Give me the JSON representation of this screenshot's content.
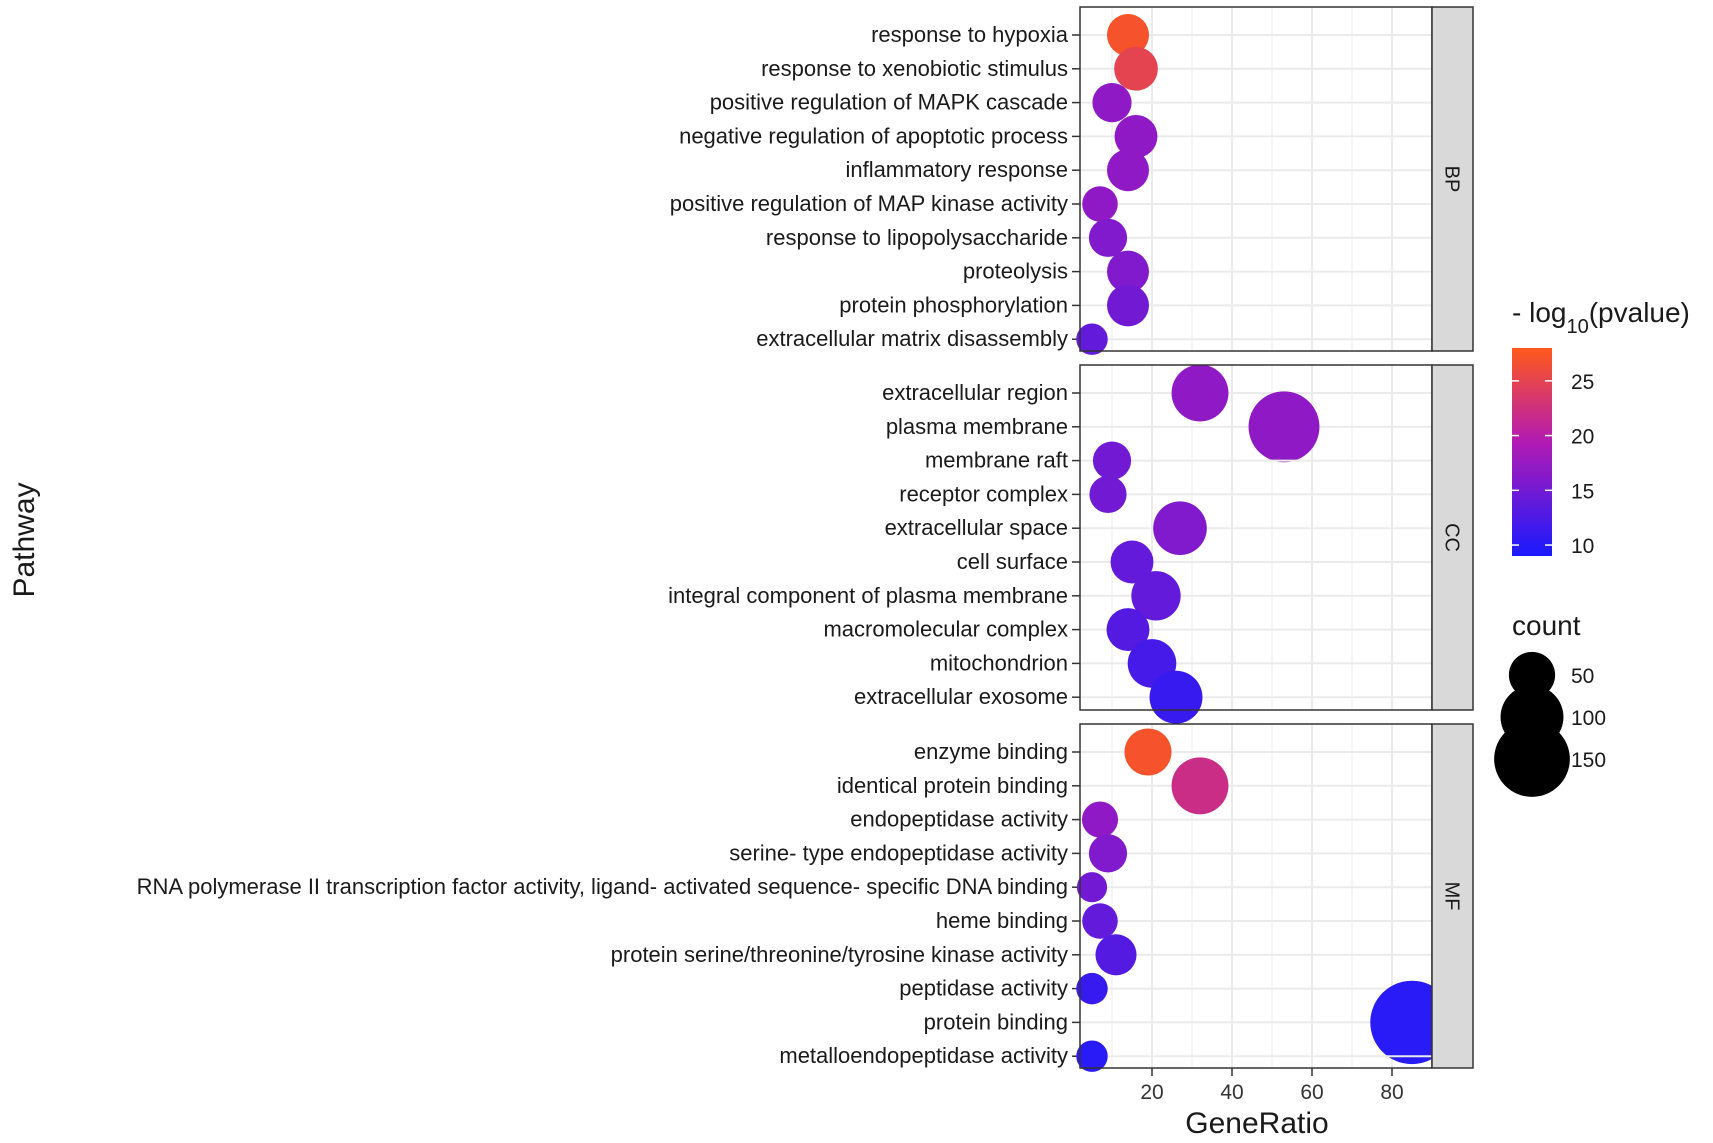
{
  "chart_data": {
    "type": "scatter",
    "xlabel": "GeneRatio",
    "ylabel": "Pathway",
    "xlim": [
      2,
      90
    ],
    "xticks": [
      20,
      40,
      60,
      80
    ],
    "panels": [
      {
        "name": "BP",
        "points": [
          {
            "label": "response to hypoxia",
            "x": 14,
            "count": 40,
            "log10p": 27
          },
          {
            "label": "response to xenobiotic stimulus",
            "x": 16,
            "count": 44,
            "log10p": 25
          },
          {
            "label": "positive regulation of MAPK cascade",
            "x": 10,
            "count": 34,
            "log10p": 17
          },
          {
            "label": "negative regulation of apoptotic process",
            "x": 16,
            "count": 42,
            "log10p": 17
          },
          {
            "label": "inflammatory response",
            "x": 14,
            "count": 40,
            "log10p": 17
          },
          {
            "label": "positive regulation of MAP kinase activity",
            "x": 7,
            "count": 27,
            "log10p": 17
          },
          {
            "label": "response to lipopolysaccharide",
            "x": 9,
            "count": 32,
            "log10p": 16
          },
          {
            "label": "proteolysis",
            "x": 14,
            "count": 40,
            "log10p": 16
          },
          {
            "label": "protein phosphorylation",
            "x": 14,
            "count": 40,
            "log10p": 15
          },
          {
            "label": "extracellular matrix disassembly",
            "x": 5,
            "count": 20,
            "log10p": 14
          }
        ]
      },
      {
        "name": "CC",
        "points": [
          {
            "label": "extracellular region",
            "x": 32,
            "count": 80,
            "log10p": 17
          },
          {
            "label": "plasma membrane",
            "x": 53,
            "count": 130,
            "log10p": 17
          },
          {
            "label": "membrane raft",
            "x": 10,
            "count": 32,
            "log10p": 15
          },
          {
            "label": "receptor complex",
            "x": 9,
            "count": 30,
            "log10p": 15
          },
          {
            "label": "extracellular space",
            "x": 27,
            "count": 70,
            "log10p": 16
          },
          {
            "label": "cell surface",
            "x": 15,
            "count": 42,
            "log10p": 14
          },
          {
            "label": "integral component of plasma membrane",
            "x": 21,
            "count": 58,
            "log10p": 14
          },
          {
            "label": "macromolecular complex",
            "x": 14,
            "count": 42,
            "log10p": 13
          },
          {
            "label": "mitochondrion",
            "x": 20,
            "count": 56,
            "log10p": 12
          },
          {
            "label": "extracellular exosome",
            "x": 26,
            "count": 68,
            "log10p": 11
          }
        ]
      },
      {
        "name": "MF",
        "points": [
          {
            "label": "enzyme binding",
            "x": 19,
            "count": 52,
            "log10p": 27
          },
          {
            "label": "identical protein binding",
            "x": 32,
            "count": 80,
            "log10p": 22
          },
          {
            "label": "endopeptidase activity",
            "x": 7,
            "count": 28,
            "log10p": 17
          },
          {
            "label": "serine- type endopeptidase activity",
            "x": 9,
            "count": 32,
            "log10p": 16
          },
          {
            "label": "RNA polymerase II transcription factor activity, ligand- activated sequence- specific DNA binding",
            "x": 5,
            "count": 18,
            "log10p": 15
          },
          {
            "label": "heme binding",
            "x": 7,
            "count": 27,
            "log10p": 14
          },
          {
            "label": "protein serine/threonine/tyrosine kinase activity",
            "x": 11,
            "count": 38,
            "log10p": 13
          },
          {
            "label": "peptidase activity",
            "x": 5,
            "count": 20,
            "log10p": 11
          },
          {
            "label": "protein binding",
            "x": 85,
            "count": 185,
            "log10p": 10
          },
          {
            "label": "metalloendopeptidase activity",
            "x": 5,
            "count": 20,
            "log10p": 10
          }
        ]
      }
    ],
    "color_legend": {
      "title_prefix": "- log",
      "title_sub": "10",
      "title_suffix": "(pvalue)",
      "range": [
        9,
        28
      ],
      "ticks": [
        10,
        15,
        20,
        25
      ],
      "low_color": "#1a1aff",
      "mid_color": "#b31ab3",
      "high_color": "#ff5a1a"
    },
    "size_legend": {
      "title": "count",
      "ticks": [
        50,
        100,
        150
      ]
    }
  }
}
